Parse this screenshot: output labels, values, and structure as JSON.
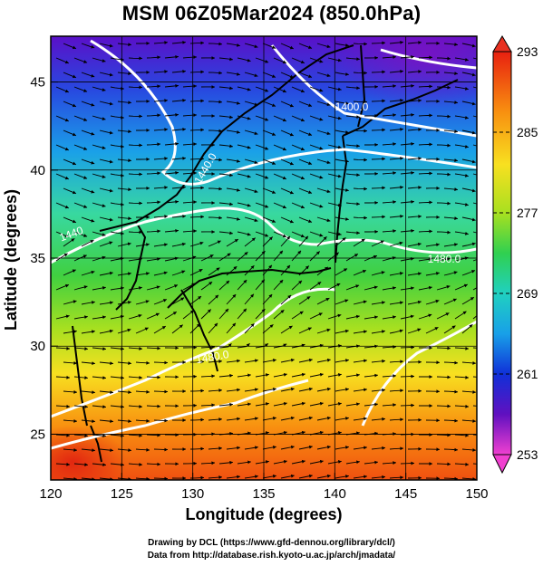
{
  "title": "MSM 06Z05Mar2024 (850.0hPa)",
  "footer": {
    "line1": "Drawing by DCL (https://www.gfd-dennou.org/library/dcl/)",
    "line2": "Data from http://database.rish.kyoto-u.ac.jp/arch/jmadata/"
  },
  "chart_data": {
    "type": "heatmap",
    "xlabel": "Longitude (degrees)",
    "ylabel": "Latitude  (degrees)",
    "xlim": [
      120,
      150
    ],
    "ylim": [
      22.4,
      47.6
    ],
    "x_ticks": [
      "120",
      "125",
      "130",
      "135",
      "140",
      "145",
      "150"
    ],
    "x_tick_values": [
      120,
      125,
      130,
      135,
      140,
      145,
      150
    ],
    "y_ticks": [
      "25",
      "30",
      "35",
      "40",
      "45"
    ],
    "y_tick_values": [
      25,
      30,
      35,
      40,
      45
    ],
    "grid": true,
    "colorbar": {
      "min": 253,
      "max": 293,
      "labels": [
        "293",
        "285",
        "277",
        "269",
        "261",
        "253"
      ],
      "label_values": [
        293,
        285,
        277,
        269,
        261,
        253
      ]
    },
    "contour_labels": [
      "1400.0",
      "1440.0",
      "1440",
      "1480.0",
      "1480.0"
    ],
    "colors": {
      "warm": "#f04010",
      "cool": "#1020c0",
      "contour": "#ffffff",
      "streamline": "#000000"
    }
  }
}
